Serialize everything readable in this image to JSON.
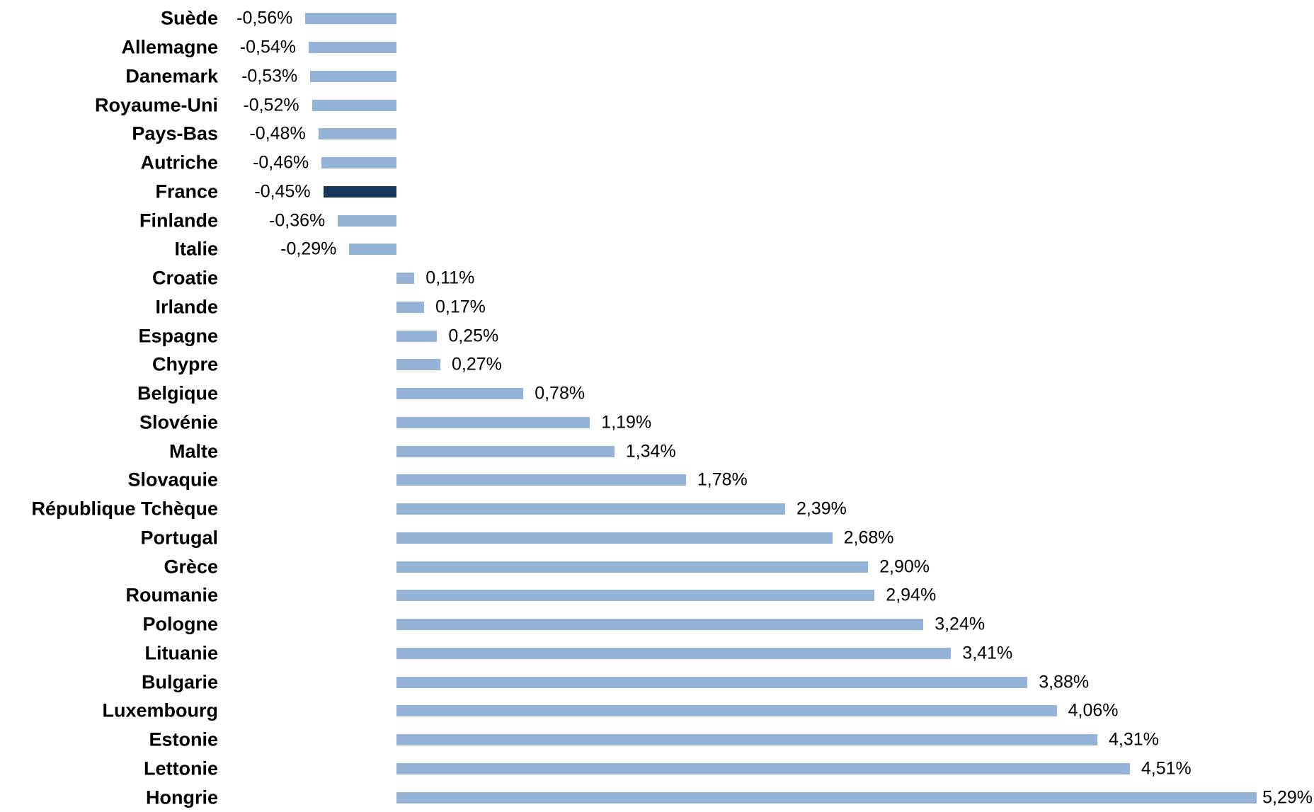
{
  "chart_data": {
    "type": "bar",
    "orientation": "horizontal",
    "title": "",
    "unit": "%",
    "decimal_separator": ",",
    "grid": false,
    "legend": false,
    "axis_lines": false,
    "xlim": [
      -0.6,
      5.4
    ],
    "bar_color": "#95B3D7",
    "highlight_bar_color": "#17365D",
    "highlight_category": "France",
    "label_position": "outside-end",
    "categories": [
      "Suède",
      "Allemagne",
      "Danemark",
      "Royaume-Uni",
      "Pays-Bas",
      "Autriche",
      "France",
      "Finlande",
      "Italie",
      "Croatie",
      "Irlande",
      "Espagne",
      "Chypre",
      "Belgique",
      "Slovénie",
      "Malte",
      "Slovaquie",
      "République Tchèque",
      "Portugal",
      "Grèce",
      "Roumanie",
      "Pologne",
      "Lituanie",
      "Bulgarie",
      "Luxembourg",
      "Estonie",
      "Lettonie",
      "Hongrie"
    ],
    "values": [
      -0.56,
      -0.54,
      -0.53,
      -0.52,
      -0.48,
      -0.46,
      -0.45,
      -0.36,
      -0.29,
      0.11,
      0.17,
      0.25,
      0.27,
      0.78,
      1.19,
      1.34,
      1.78,
      2.39,
      2.68,
      2.9,
      2.94,
      3.24,
      3.41,
      3.88,
      4.06,
      4.31,
      4.51,
      5.29
    ],
    "value_labels": [
      "-0,56%",
      "-0,54%",
      "-0,53%",
      "-0,52%",
      "-0,48%",
      "-0,46%",
      "-0,45%",
      "-0,36%",
      "-0,29%",
      "0,11%",
      "0,17%",
      "0,25%",
      "0,27%",
      "0,78%",
      "1,19%",
      "1,34%",
      "1,78%",
      "2,39%",
      "2,68%",
      "2,90%",
      "2,94%",
      "3,24%",
      "3,41%",
      "3,88%",
      "4,06%",
      "4,31%",
      "4,51%",
      "5,29%"
    ]
  }
}
